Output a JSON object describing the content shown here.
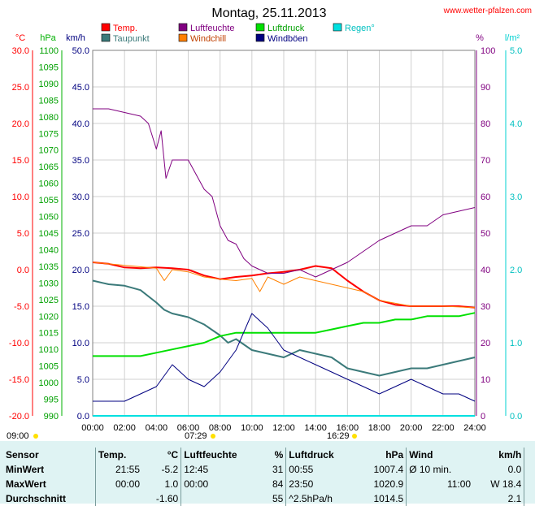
{
  "site": "www.wetter-pfalzen.com",
  "colors": {
    "temp": "#ff0000",
    "dew": "#3b7a7a",
    "humid": "#800080",
    "windchill": "#ff8000",
    "pressure": "#00e000",
    "gust": "#000080",
    "rain": "#00e0e0",
    "wind": "#000080",
    "axis_c": "#ff0000",
    "axis_hpa": "#00b000",
    "axis_kmh": "#000080",
    "axis_pct": "#800080",
    "axis_rain": "#00d0d0"
  },
  "legend": {
    "temp": "Temp.",
    "dew": "Taupunkt",
    "humid": "Luftfeuchte",
    "windchill": "Windchill",
    "pressure": "Luftdruck",
    "gust": "Windböen",
    "rain": "Regen°"
  },
  "sun": {
    "rise": "07:29",
    "set": "16:29",
    "start": "09:00"
  },
  "chart_data": {
    "type": "line",
    "title": "Montag, 25.11.2013",
    "axes": {
      "temp": {
        "unit": "°C",
        "range": [
          -20,
          30
        ],
        "ticks": [
          "30.0",
          "25.0",
          "20.0",
          "15.0",
          "10.0",
          "5.0",
          "0.0",
          "-5.0",
          "-10.0",
          "-15.0",
          "-20.0"
        ]
      },
      "pressure": {
        "unit": "hPa",
        "range": [
          990,
          1100
        ],
        "ticks": [
          "1100",
          "1095",
          "1090",
          "1085",
          "1080",
          "1075",
          "1070",
          "1065",
          "1060",
          "1055",
          "1050",
          "1045",
          "1040",
          "1035",
          "1030",
          "1025",
          "1020",
          "1015",
          "1010",
          "1005",
          "1000",
          "995",
          "990"
        ]
      },
      "wind": {
        "unit": "km/h",
        "range": [
          0,
          50
        ],
        "ticks": [
          "50.0",
          "45.0",
          "40.0",
          "35.0",
          "30.0",
          "25.0",
          "20.0",
          "15.0",
          "10.0",
          "5.0",
          "0.0"
        ]
      },
      "humidity": {
        "unit": "%",
        "range": [
          0,
          100
        ],
        "ticks": [
          "100",
          "90",
          "80",
          "70",
          "60",
          "50",
          "40",
          "30",
          "20",
          "10",
          "0"
        ]
      },
      "rain": {
        "unit": "l/m²",
        "range": [
          0,
          5
        ],
        "ticks": [
          "5.0",
          "4.0",
          "3.0",
          "2.0",
          "1.0",
          "0.0"
        ]
      },
      "x": {
        "unit": "hours",
        "range": [
          0,
          24
        ],
        "ticks": [
          "00:00",
          "02:00",
          "04:00",
          "06:00",
          "08:00",
          "10:00",
          "12:00",
          "14:00",
          "16:00",
          "18:00",
          "20:00",
          "22:00",
          "24:00"
        ]
      }
    },
    "series": [
      {
        "name": "Temp.",
        "axis": "temp",
        "x": [
          0,
          1,
          2,
          3,
          4,
          5,
          6,
          7,
          8,
          9,
          10,
          11,
          12,
          13,
          14,
          15,
          16,
          17,
          18,
          19,
          20,
          21,
          22,
          23,
          24
        ],
        "values": [
          1.0,
          0.8,
          0.3,
          0.2,
          0.3,
          0.2,
          0.0,
          -0.8,
          -1.3,
          -1.0,
          -0.8,
          -0.5,
          -0.3,
          0.0,
          0.5,
          0.2,
          -1.5,
          -3.0,
          -4.2,
          -4.8,
          -5.0,
          -5.0,
          -5.0,
          -5.0,
          -5.2
        ]
      },
      {
        "name": "Taupunkt",
        "axis": "temp",
        "x": [
          0,
          1,
          2,
          3,
          4,
          4.5,
          5,
          6,
          7,
          8,
          8.5,
          9,
          10,
          11,
          12,
          13,
          14,
          15,
          16,
          17,
          18,
          19,
          20,
          21,
          22,
          23,
          24
        ],
        "values": [
          -1.5,
          -2.0,
          -2.2,
          -2.8,
          -4.5,
          -5.5,
          -6.0,
          -6.5,
          -7.5,
          -9.0,
          -10.0,
          -9.5,
          -11.0,
          -11.5,
          -12.0,
          -11.0,
          -11.5,
          -12.0,
          -13.5,
          -14.0,
          -14.5,
          -14.0,
          -13.5,
          -13.5,
          -13.0,
          -12.5,
          -12.0
        ]
      },
      {
        "name": "Luftfeuchte",
        "axis": "humidity",
        "x": [
          0,
          1,
          2,
          3,
          3.5,
          4,
          4.3,
          4.6,
          5,
          6,
          7,
          7.5,
          8,
          8.5,
          9,
          9.5,
          10,
          11,
          12,
          13,
          14,
          15,
          16,
          17,
          18,
          19,
          20,
          21,
          22,
          23,
          24
        ],
        "values": [
          84,
          84,
          83,
          82,
          80,
          73,
          78,
          65,
          70,
          70,
          62,
          60,
          52,
          48,
          47,
          43,
          41,
          39,
          39,
          40,
          38,
          40,
          42,
          45,
          48,
          50,
          52,
          52,
          55,
          56,
          57
        ]
      },
      {
        "name": "Luftdruck",
        "axis": "pressure",
        "x": [
          0,
          1,
          2,
          3,
          4,
          5,
          6,
          7,
          8,
          9,
          10,
          11,
          12,
          13,
          14,
          15,
          16,
          17,
          18,
          19,
          20,
          21,
          22,
          23,
          24
        ],
        "values": [
          1008,
          1008,
          1008,
          1008,
          1009,
          1010,
          1011,
          1012,
          1014,
          1015,
          1015,
          1015,
          1015,
          1015,
          1015,
          1016,
          1017,
          1018,
          1018,
          1019,
          1019,
          1020,
          1020,
          1020,
          1021
        ]
      },
      {
        "name": "Windchill",
        "axis": "temp",
        "x": [
          0,
          4,
          4.5,
          5,
          6,
          7,
          8,
          9,
          10,
          10.5,
          11,
          12,
          13,
          14,
          15,
          16,
          17,
          18,
          20,
          22,
          24
        ],
        "values": [
          1.0,
          0.2,
          -1.5,
          0.0,
          -0.3,
          -1.0,
          -1.3,
          -1.5,
          -1.2,
          -3.0,
          -1.0,
          -2.0,
          -1.0,
          -1.5,
          -2.0,
          -2.5,
          -3.0,
          -4.2,
          -5.0,
          -5.0,
          -5.2
        ]
      },
      {
        "name": "Windböen",
        "axis": "wind",
        "x": [
          0,
          1,
          2,
          3,
          4,
          5,
          6,
          7,
          8,
          9,
          10,
          11,
          12,
          13,
          14,
          15,
          16,
          17,
          18,
          19,
          20,
          21,
          22,
          23,
          24
        ],
        "values": [
          2,
          2,
          2,
          3,
          4,
          7,
          5,
          4,
          6,
          9,
          14,
          12,
          9,
          8,
          7,
          6,
          5,
          4,
          3,
          4,
          5,
          4,
          3,
          3,
          2
        ]
      },
      {
        "name": "Regen°",
        "axis": "rain",
        "x": [
          0,
          24
        ],
        "values": [
          0,
          0
        ]
      }
    ]
  },
  "stats": {
    "headers": {
      "sensor": "Sensor",
      "temp": "Temp.",
      "temp_unit": "°C",
      "humid": "Luftfeuchte",
      "humid_unit": "%",
      "press": "Luftdruck",
      "press_unit": "hPa",
      "wind": "Wind",
      "wind_unit": "km/h"
    },
    "min": {
      "label": "MinWert",
      "t_time": "21:55",
      "t_val": "-5.2",
      "h_time": "12:45",
      "h_val": "31",
      "p_time": "00:55",
      "p_val": "1007.4",
      "w_label": "Ø 10 min.",
      "w_val": "0.0"
    },
    "max": {
      "label": "MaxWert",
      "t_time": "00:00",
      "t_val": "1.0",
      "h_time": "00:00",
      "h_val": "84",
      "p_time": "23:50",
      "p_val": "1020.9",
      "w_label": "11:00",
      "w_val": "W 18.4"
    },
    "avg": {
      "label": "Durchschnitt",
      "t_time": "",
      "t_val": "-1.60",
      "h_time": "",
      "h_val": "55",
      "p_time": "^2.5hPa/h",
      "p_val": "1014.5",
      "w_label": "",
      "w_val": "2.1"
    }
  }
}
